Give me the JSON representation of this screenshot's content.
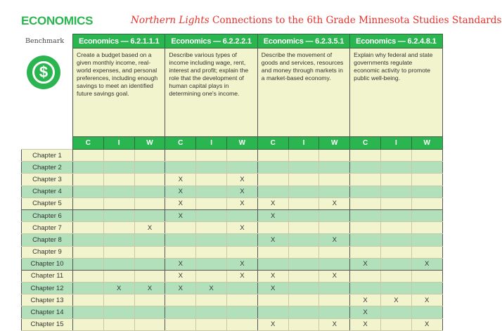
{
  "section_title": "ECONOMICS",
  "title": {
    "italic": "Northern Lights",
    "rest": " Connections to the 6th Grade Minnesota Studies Standards"
  },
  "benchmark_label": "Benchmark",
  "logo_icon": "dollar-circle-icon",
  "colors": {
    "green": "#2bb550",
    "red": "#e8312b",
    "row_light": "#f1f4cc",
    "row_green": "#b1e0bb"
  },
  "benchmarks": [
    {
      "code": "Economics — 6.2.1.1.1",
      "desc": "Create a budget based on a given monthly income, real-world expenses, and personal preferences, including enough savings to meet an identified future savings goal."
    },
    {
      "code": "Economics — 6.2.2.2.1",
      "desc": "Describe various types of income including wage, rent, interest and profit; explain the role that the development of human capital plays in determining one's income."
    },
    {
      "code": "Economics — 6.2.3.5.1",
      "desc": "Describe the movement of goods and services, resources and money through markets in a market-based economy."
    },
    {
      "code": "Economics — 6.2.4.8.1",
      "desc": "Explain why federal and state governments regulate economic activity to promote public well-being."
    }
  ],
  "sub_columns": [
    "C",
    "I",
    "W",
    "C",
    "I",
    "W",
    "C",
    "I",
    "W",
    "C",
    "I",
    "W"
  ],
  "rows": [
    {
      "chapter": "Chapter 1",
      "marks": [
        "",
        "",
        "",
        "",
        "",
        "",
        "",
        "",
        "",
        "",
        "",
        ""
      ]
    },
    {
      "chapter": "Chapter 2",
      "marks": [
        "",
        "",
        "",
        "",
        "",
        "",
        "",
        "",
        "",
        "",
        "",
        ""
      ]
    },
    {
      "chapter": "Chapter 3",
      "marks": [
        "",
        "",
        "",
        "X",
        "",
        "X",
        "",
        "",
        "",
        "",
        "",
        ""
      ]
    },
    {
      "chapter": "Chapter 4",
      "marks": [
        "",
        "",
        "",
        "X",
        "",
        "X",
        "",
        "",
        "",
        "",
        "",
        ""
      ]
    },
    {
      "chapter": "Chapter 5",
      "marks": [
        "",
        "",
        "",
        "X",
        "",
        "X",
        "X",
        "",
        "X",
        "",
        "",
        ""
      ]
    },
    {
      "chapter": "Chapter 6",
      "marks": [
        "",
        "",
        "",
        "X",
        "",
        "",
        "X",
        "",
        "",
        "",
        "",
        ""
      ]
    },
    {
      "chapter": "Chapter 7",
      "marks": [
        "",
        "",
        "X",
        "",
        "",
        "X",
        "",
        "",
        "",
        "",
        "",
        ""
      ]
    },
    {
      "chapter": "Chapter 8",
      "marks": [
        "",
        "",
        "",
        "",
        "",
        "",
        "X",
        "",
        "X",
        "",
        "",
        ""
      ]
    },
    {
      "chapter": "Chapter 9",
      "marks": [
        "",
        "",
        "",
        "",
        "",
        "",
        "",
        "",
        "",
        "",
        "",
        ""
      ]
    },
    {
      "chapter": "Chapter 10",
      "marks": [
        "",
        "",
        "",
        "X",
        "",
        "X",
        "",
        "",
        "",
        "X",
        "",
        "X"
      ]
    },
    {
      "chapter": "Chapter 11",
      "marks": [
        "",
        "",
        "",
        "X",
        "",
        "X",
        "X",
        "",
        "X",
        "",
        "",
        ""
      ]
    },
    {
      "chapter": "Chapter 12",
      "marks": [
        "",
        "X",
        "X",
        "X",
        "X",
        "",
        "X",
        "",
        "",
        "",
        "",
        ""
      ]
    },
    {
      "chapter": "Chapter 13",
      "marks": [
        "",
        "",
        "",
        "",
        "",
        "",
        "",
        "",
        "",
        "X",
        "X",
        "X"
      ]
    },
    {
      "chapter": "Chapter 14",
      "marks": [
        "",
        "",
        "",
        "",
        "",
        "",
        "",
        "",
        "",
        "X",
        "",
        ""
      ]
    },
    {
      "chapter": "Chapter 15",
      "marks": [
        "",
        "",
        "",
        "",
        "",
        "",
        "X",
        "",
        "X",
        "X",
        "",
        "X"
      ]
    }
  ]
}
